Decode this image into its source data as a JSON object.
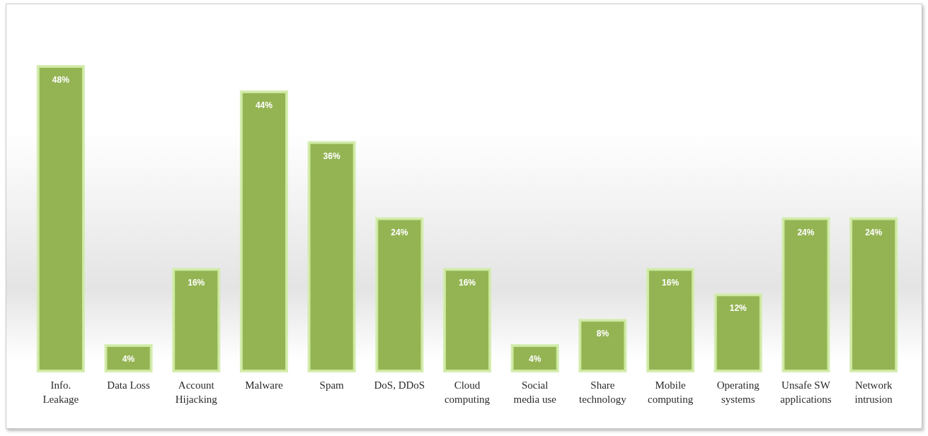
{
  "chart_data": {
    "type": "bar",
    "categories": [
      "Info.\nLeakage",
      "Data Loss",
      "Account\nHijacking",
      "Malware",
      "Spam",
      "DoS, DDoS",
      "Cloud\ncomputing",
      "Social\nmedia use",
      "Share\ntechnology",
      "Mobile\ncomputing",
      "Operating\nsystems",
      "Unsafe SW\napplications",
      "Network\nintrusion"
    ],
    "values": [
      48,
      4,
      16,
      44,
      36,
      24,
      16,
      4,
      8,
      16,
      12,
      24,
      24
    ],
    "value_labels": [
      "48%",
      "4%",
      "16%",
      "44%",
      "36%",
      "24%",
      "16%",
      "4%",
      "8%",
      "16%",
      "12%",
      "24%",
      "24%"
    ],
    "color": "#94b453"
  }
}
